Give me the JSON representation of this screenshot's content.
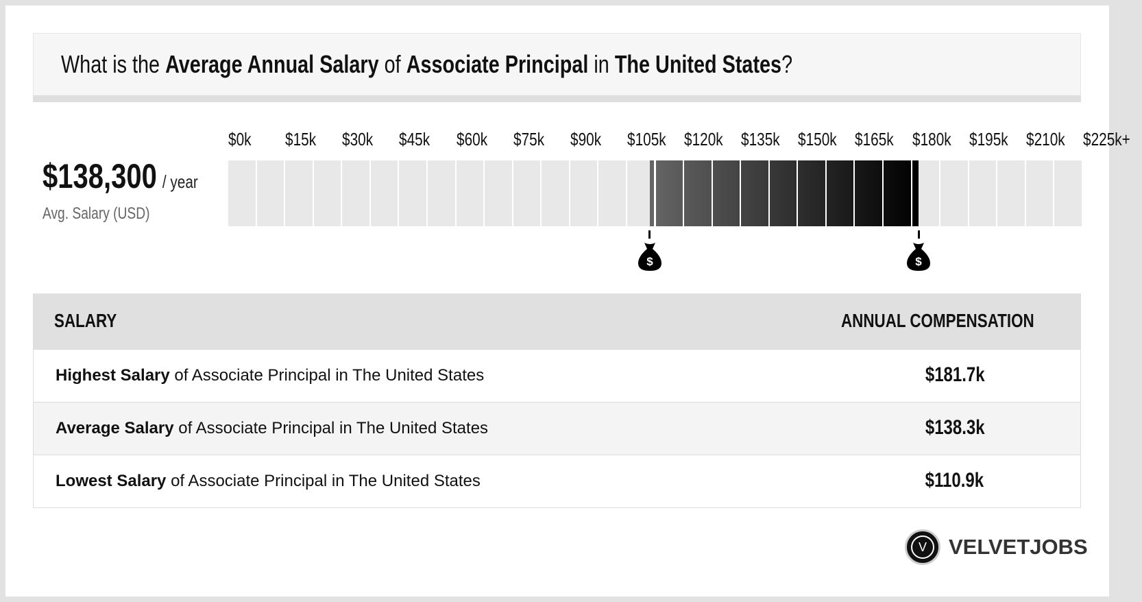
{
  "title": {
    "p1": "What is the ",
    "b1": "Average Annual Salary",
    "p2": " of ",
    "b2": "Associate Principal",
    "p3": " in ",
    "b3": "The United States",
    "p4": "?"
  },
  "summary": {
    "amount": "$138,300",
    "per": "/ year",
    "label": "Avg. Salary (USD)"
  },
  "chart_data": {
    "type": "bar",
    "orientation": "horizontal-range",
    "tick_labels": [
      "$0k",
      "$15k",
      "$30k",
      "$45k",
      "$60k",
      "$75k",
      "$90k",
      "$105k",
      "$120k",
      "$135k",
      "$150k",
      "$165k",
      "$180k",
      "$195k",
      "$210k",
      "$225k+"
    ],
    "xlim": [
      0,
      225000
    ],
    "segment_step": 7500,
    "range": {
      "low": 110900,
      "high": 181700,
      "average": 138300
    },
    "colors": {
      "empty": "#e8e8e8",
      "range_start": "#666666",
      "range_end": "#000000"
    },
    "markers": [
      "money-bag-icon",
      "money-bag-icon"
    ]
  },
  "table": {
    "headers": [
      "SALARY",
      "ANNUAL COMPENSATION"
    ],
    "rows": [
      {
        "bold": "Highest Salary",
        "rest": " of Associate Principal in The United States",
        "value": "$181.7k"
      },
      {
        "bold": "Average Salary",
        "rest": " of Associate Principal in The United States",
        "value": "$138.3k"
      },
      {
        "bold": "Lowest Salary",
        "rest": " of Associate Principal in The United States",
        "value": "$110.9k"
      }
    ]
  },
  "logo": {
    "letter": "V",
    "text": "VELVETJOBS"
  }
}
